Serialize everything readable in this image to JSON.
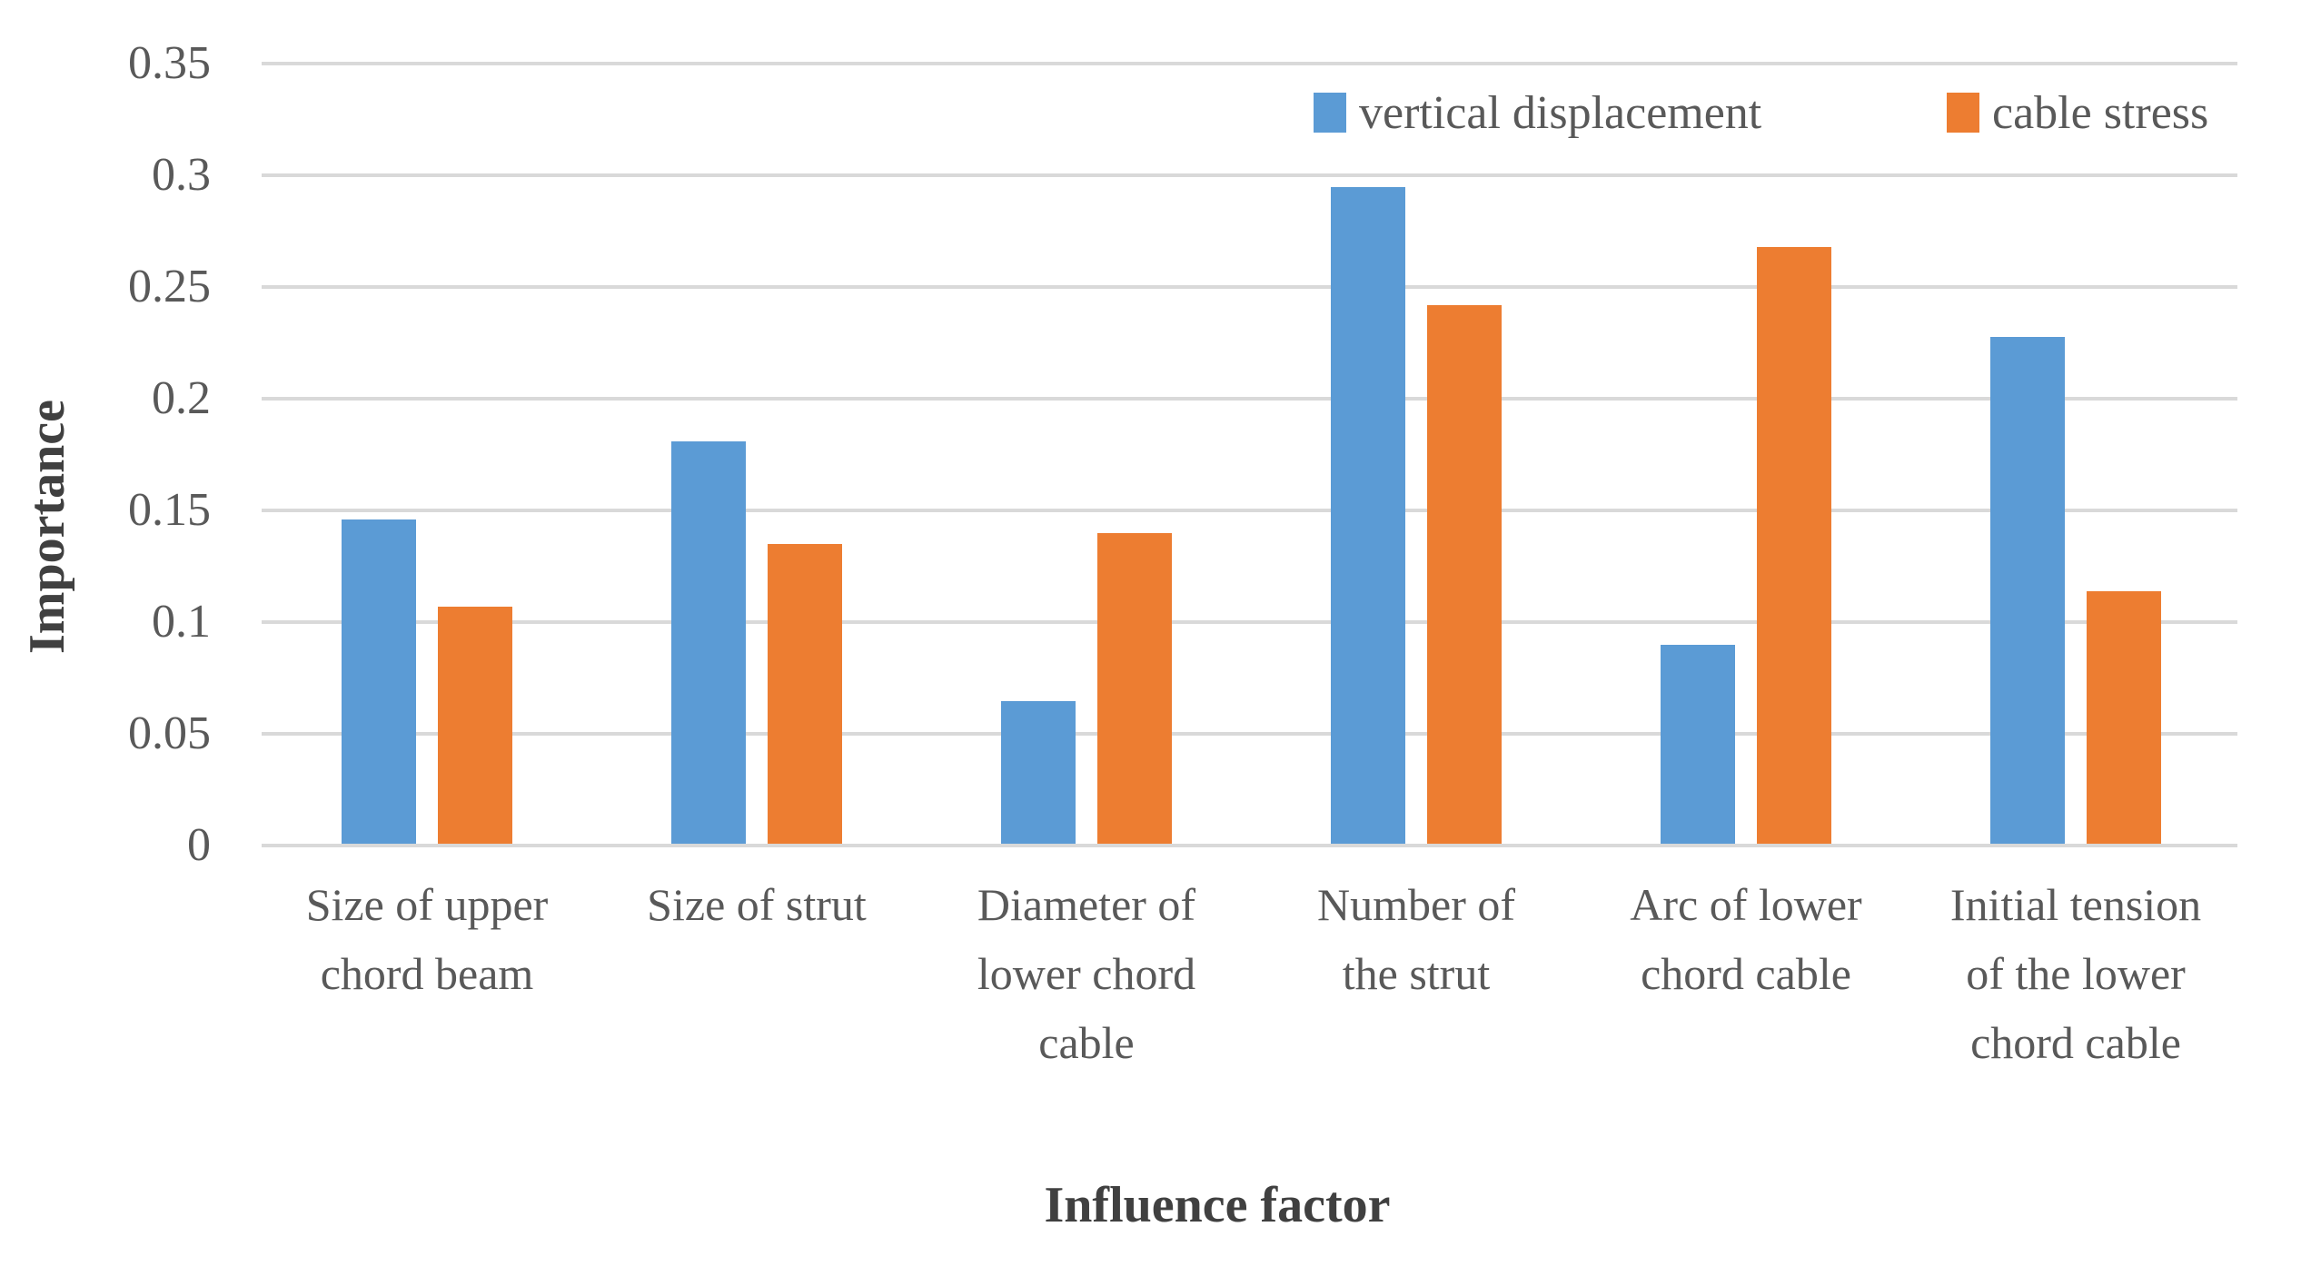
{
  "page": {
    "background": "#ffffff"
  },
  "chart_data": {
    "type": "bar",
    "title": "",
    "xlabel": "Influence factor",
    "ylabel": "Importance",
    "categories": [
      "Size of upper\nchord beam",
      "Size of strut",
      "Diameter of\nlower chord\ncable",
      "Number of\nthe strut",
      "Arc of lower\nchord cable",
      "Initial tension\nof the lower\nchord cable"
    ],
    "series": [
      {
        "name": "vertical displacement",
        "color": "#5B9BD5",
        "values": [
          0.145,
          0.18,
          0.064,
          0.294,
          0.089,
          0.227
        ]
      },
      {
        "name": "cable stress",
        "color": "#ED7D31",
        "values": [
          0.106,
          0.134,
          0.139,
          0.241,
          0.267,
          0.113
        ]
      }
    ],
    "ylim": [
      0,
      0.35
    ],
    "yticks": [
      0,
      0.05,
      0.1,
      0.15,
      0.2,
      0.25,
      0.3,
      0.35
    ],
    "ytick_labels": [
      "0",
      "0.05",
      "0.1",
      "0.15",
      "0.2",
      "0.25",
      "0.3",
      "0.35"
    ],
    "grid": true,
    "legend_position": "top-right",
    "colors": {
      "gridline": "#D9D9D9",
      "axis_line": "#D9D9D9",
      "tick_text": "#595959",
      "title_text": "#404040"
    }
  }
}
